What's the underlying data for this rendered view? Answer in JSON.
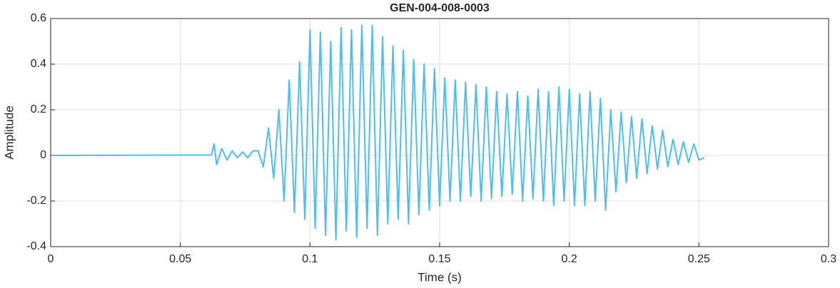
{
  "chart_data": {
    "type": "line",
    "title": "GEN-004-008-0003",
    "x_label": "Time (s)",
    "y_label": "Amplitude",
    "color": "#4dbeee",
    "grid": true,
    "xlim": [
      0,
      0.3
    ],
    "xticks": [
      0,
      0.05,
      0.1,
      0.15,
      0.2,
      0.25,
      0.3
    ],
    "ylim": [
      -0.4,
      0.6
    ],
    "yticks": [
      -0.4,
      -0.2,
      0,
      0.2,
      0.4,
      0.6
    ],
    "x": [
      0,
      0.062,
      0.063,
      0.064,
      0.066,
      0.068,
      0.07,
      0.072,
      0.074,
      0.076,
      0.078,
      0.08,
      0.082,
      0.084,
      0.086,
      0.088,
      0.09,
      0.092,
      0.094,
      0.096,
      0.098,
      0.1,
      0.102,
      0.104,
      0.106,
      0.108,
      0.11,
      0.112,
      0.114,
      0.116,
      0.118,
      0.12,
      0.122,
      0.124,
      0.126,
      0.128,
      0.13,
      0.132,
      0.134,
      0.136,
      0.138,
      0.14,
      0.142,
      0.144,
      0.146,
      0.148,
      0.15,
      0.152,
      0.154,
      0.156,
      0.158,
      0.16,
      0.162,
      0.164,
      0.166,
      0.168,
      0.17,
      0.172,
      0.174,
      0.176,
      0.178,
      0.18,
      0.182,
      0.184,
      0.186,
      0.188,
      0.19,
      0.192,
      0.194,
      0.196,
      0.198,
      0.2,
      0.202,
      0.204,
      0.206,
      0.208,
      0.21,
      0.212,
      0.214,
      0.216,
      0.218,
      0.22,
      0.222,
      0.224,
      0.226,
      0.228,
      0.23,
      0.232,
      0.234,
      0.236,
      0.238,
      0.24,
      0.242,
      0.244,
      0.246,
      0.248,
      0.25,
      0.252
    ],
    "values": [
      0,
      0.002,
      0.05,
      -0.04,
      0.03,
      -0.02,
      0.02,
      -0.01,
      0.015,
      -0.01,
      0.02,
      0.02,
      -0.05,
      0.12,
      -0.1,
      0.2,
      -0.2,
      0.33,
      -0.25,
      0.41,
      -0.28,
      0.55,
      -0.32,
      0.54,
      -0.35,
      0.5,
      -0.37,
      0.56,
      -0.33,
      0.55,
      -0.36,
      0.57,
      -0.32,
      0.57,
      -0.35,
      0.52,
      -0.3,
      0.48,
      -0.28,
      0.46,
      -0.3,
      0.42,
      -0.26,
      0.4,
      -0.24,
      0.38,
      -0.22,
      0.34,
      -0.2,
      0.33,
      -0.2,
      0.32,
      -0.18,
      0.31,
      -0.2,
      0.3,
      -0.19,
      0.28,
      -0.18,
      0.27,
      -0.17,
      0.28,
      -0.2,
      0.26,
      -0.19,
      0.29,
      -0.2,
      0.28,
      -0.22,
      0.3,
      -0.2,
      0.29,
      -0.22,
      0.27,
      -0.22,
      0.28,
      -0.2,
      0.25,
      -0.24,
      0.2,
      -0.16,
      0.19,
      -0.12,
      0.17,
      -0.1,
      0.16,
      -0.08,
      0.13,
      -0.06,
      0.11,
      -0.05,
      0.07,
      -0.04,
      0.06,
      -0.03,
      0.05,
      -0.02,
      -0.01
    ]
  }
}
